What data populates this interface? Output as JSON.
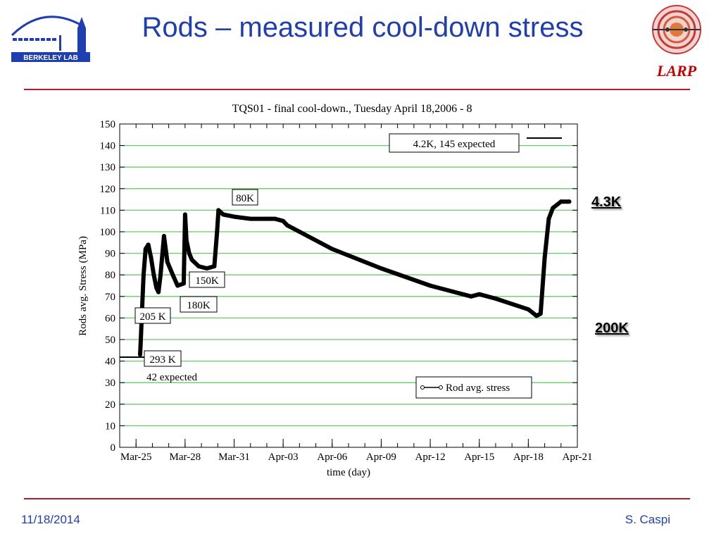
{
  "slide": {
    "title": "Rods – measured cool-down stress",
    "date": "11/18/2014",
    "author": "S. Caspi",
    "logo_left": "BERKELEY LAB",
    "logo_right": "LARP",
    "accent_color": "#b01c2e",
    "title_color": "#1f3fb0",
    "side_labels": [
      "4.3K",
      "200K"
    ]
  },
  "chart_data": {
    "type": "line",
    "title": "TQS01 - final cool-down., Tuesday April 18,2006 - 8",
    "xlabel": "time (day)",
    "ylabel": "Rods avg. Stress (MPa)",
    "ylim": [
      0,
      150
    ],
    "yticks": [
      0,
      10,
      20,
      30,
      40,
      50,
      60,
      70,
      80,
      90,
      100,
      110,
      120,
      130,
      140,
      150
    ],
    "xlim": [
      "2006-03-24",
      "2006-04-21"
    ],
    "xtick_labels": [
      "Mar-25",
      "Mar-28",
      "Mar-31",
      "Apr-03",
      "Apr-06",
      "Apr-09",
      "Apr-12",
      "Apr-15",
      "Apr-18",
      "Apr-21"
    ],
    "xtick_dates": [
      "2006-03-25",
      "2006-03-28",
      "2006-03-31",
      "2006-04-03",
      "2006-04-06",
      "2006-04-09",
      "2006-04-12",
      "2006-04-15",
      "2006-04-18",
      "2006-04-21"
    ],
    "grid": true,
    "grid_color": "#6cc86c",
    "line_color": "#000000",
    "legend": {
      "placement": "bottom-right",
      "entries": [
        "Rod avg. stress"
      ]
    },
    "annotations": [
      "4.2K, 145 expected",
      "80K",
      "150K",
      "180K",
      "205 K",
      "293 K",
      "42 expected"
    ],
    "series": [
      {
        "name": "Rod avg. stress",
        "x": [
          "2006-03-25T06:00",
          "2006-03-25T07:00",
          "2006-03-25T09:00",
          "2006-03-25T11:00",
          "2006-03-25T14:00",
          "2006-03-25T18:00",
          "2006-03-25T22:00",
          "2006-03-26T02:00",
          "2006-03-26T06:00",
          "2006-03-26T09:00",
          "2006-03-26T12:00",
          "2006-03-26T17:00",
          "2006-03-26T22:00",
          "2006-03-27T06:00",
          "2006-03-27T13:00",
          "2006-03-27T22:00",
          "2006-03-28T00:00",
          "2006-03-28T02:00",
          "2006-03-28T06:00",
          "2006-03-28T10:00",
          "2006-03-28T20:00",
          "2006-03-29T08:00",
          "2006-03-29T19:00",
          "2006-03-29T23:00",
          "2006-03-30T01:00",
          "2006-03-30T08:00",
          "2006-03-31T00:00",
          "2006-04-01T00:00",
          "2006-04-02T00:00",
          "2006-04-02T12:00",
          "2006-04-03T00:00",
          "2006-04-03T06:00",
          "2006-04-04T00:00",
          "2006-04-06T00:00",
          "2006-04-09T00:00",
          "2006-04-12T00:00",
          "2006-04-14T12:00",
          "2006-04-15T00:00",
          "2006-04-16T00:00",
          "2006-04-18T00:00",
          "2006-04-18T12:00",
          "2006-04-18T18:00",
          "2006-04-19T00:00",
          "2006-04-19T06:00",
          "2006-04-19T12:00",
          "2006-04-20T00:00",
          "2006-04-20T12:00"
        ],
        "y": [
          43,
          50,
          65,
          80,
          92,
          94,
          88,
          80,
          74,
          72,
          80,
          98,
          86,
          80,
          75,
          76,
          108,
          96,
          90,
          87,
          84,
          83,
          84,
          100,
          110,
          108,
          107,
          106,
          106,
          106,
          105,
          103,
          100,
          92,
          83,
          75,
          70,
          71,
          69,
          64,
          61,
          62,
          88,
          106,
          111,
          114,
          114
        ]
      }
    ]
  }
}
